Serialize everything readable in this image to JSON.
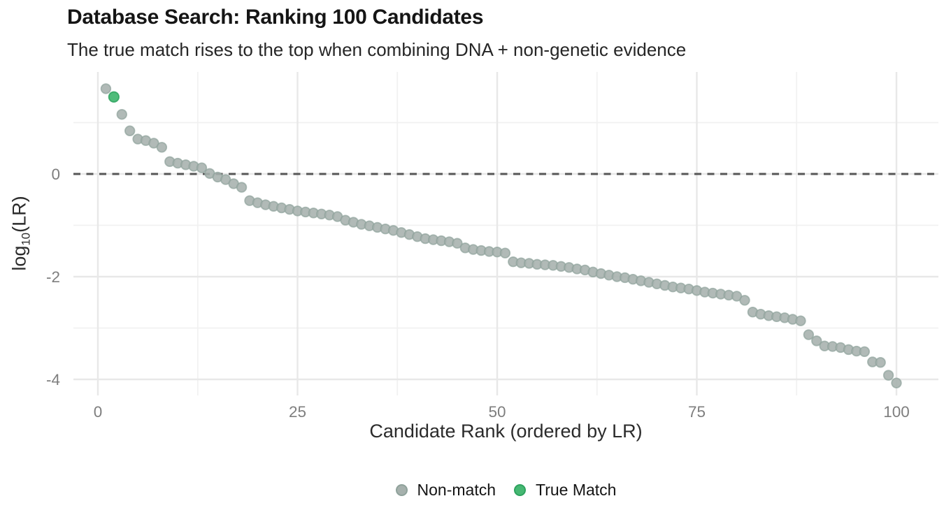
{
  "chart_data": {
    "type": "scatter",
    "title": "Database Search: Ranking 100 Candidates",
    "subtitle": "The true match rises to the top when combining DNA + non-genetic evidence",
    "xlabel": "Candidate Rank (ordered by LR)",
    "ylabel": "log10(LR)",
    "ylabel_parts": {
      "pre": "log",
      "sub": "10",
      "post": "(LR)"
    },
    "x_ticks": [
      0,
      25,
      50,
      75,
      100
    ],
    "x_minor_ticks": [
      12.5,
      37.5,
      62.5,
      87.5
    ],
    "y_ticks": [
      0,
      -2,
      -4
    ],
    "y_minor_ticks": [
      1,
      -1,
      -3
    ],
    "xlim": [
      -3,
      105.4
    ],
    "ylim": [
      -4.3,
      1.95
    ],
    "grid": true,
    "reference_line": {
      "y": 0,
      "style": "dashed",
      "color": "#565656"
    },
    "x_is_rank": "x values are candidate ranks 1..100 in order",
    "log10_lr_values": [
      1.66,
      1.5,
      1.16,
      0.84,
      0.68,
      0.65,
      0.6,
      0.52,
      0.24,
      0.21,
      0.18,
      0.15,
      0.12,
      0.01,
      -0.06,
      -0.11,
      -0.19,
      -0.26,
      -0.52,
      -0.56,
      -0.6,
      -0.63,
      -0.66,
      -0.69,
      -0.72,
      -0.74,
      -0.76,
      -0.78,
      -0.8,
      -0.83,
      -0.9,
      -0.94,
      -0.98,
      -1.01,
      -1.04,
      -1.07,
      -1.1,
      -1.14,
      -1.18,
      -1.22,
      -1.26,
      -1.28,
      -1.3,
      -1.32,
      -1.35,
      -1.44,
      -1.47,
      -1.49,
      -1.51,
      -1.52,
      -1.54,
      -1.71,
      -1.73,
      -1.74,
      -1.76,
      -1.77,
      -1.78,
      -1.8,
      -1.82,
      -1.85,
      -1.87,
      -1.91,
      -1.94,
      -1.97,
      -2.0,
      -2.02,
      -2.05,
      -2.08,
      -2.11,
      -2.14,
      -2.17,
      -2.2,
      -2.22,
      -2.24,
      -2.27,
      -2.3,
      -2.32,
      -2.34,
      -2.36,
      -2.38,
      -2.46,
      -2.69,
      -2.73,
      -2.76,
      -2.78,
      -2.8,
      -2.83,
      -2.86,
      -3.13,
      -3.25,
      -3.35,
      -3.36,
      -3.38,
      -3.42,
      -3.45,
      -3.46,
      -3.66,
      -3.67,
      -3.92,
      -4.07
    ],
    "true_match": {
      "rank": 2,
      "log10_lr": 1.5
    },
    "legend": {
      "position": "bottom",
      "items": [
        {
          "label": "Non-match",
          "color": "#a6b1ad"
        },
        {
          "label": "True Match",
          "color": "#46b873"
        }
      ]
    },
    "colors": {
      "non_match_fill": "#a6b1ad",
      "non_match_stroke": "#8fa29b",
      "true_match_fill": "#46b873",
      "true_match_stroke": "#2ea35f",
      "grid_major": "#e8e8e8",
      "grid_minor": "#f1f1f1",
      "tick_label": "#7e7e7e",
      "reference": "#565656"
    }
  }
}
